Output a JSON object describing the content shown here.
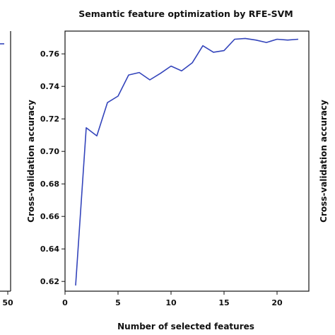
{
  "chart_data": [
    {
      "type": "line",
      "title": "Semantic feature optimization by RFE-SVM",
      "xlabel": "Number of selected features",
      "ylabel": "Cross-validation accuracy",
      "xlim": [
        0,
        23
      ],
      "ylim": [
        0.614,
        0.774
      ],
      "xticks": [
        0,
        5,
        10,
        15,
        20
      ],
      "yticks": [
        0.62,
        0.64,
        0.66,
        0.68,
        0.7,
        0.72,
        0.74,
        0.76
      ],
      "x_tick_labels": [
        "0",
        "5",
        "10",
        "15",
        "20"
      ],
      "y_tick_labels": [
        "0.62",
        "0.64",
        "0.66",
        "0.68",
        "0.70",
        "0.72",
        "0.74",
        "0.76"
      ],
      "grid": false,
      "series": [
        {
          "color": "#3344bb",
          "x": [
            1,
            2,
            3,
            4,
            5,
            6,
            7,
            8,
            9,
            10,
            11,
            12,
            13,
            14,
            15,
            16,
            17,
            18,
            19,
            20,
            21,
            22
          ],
          "y": [
            0.6175,
            0.7145,
            0.7095,
            0.73,
            0.734,
            0.747,
            0.7485,
            0.744,
            0.748,
            0.7525,
            0.7495,
            0.7545,
            0.765,
            0.761,
            0.762,
            0.769,
            0.7695,
            0.7685,
            0.767,
            0.769,
            0.7685,
            0.769
          ]
        }
      ]
    },
    {
      "type": "line",
      "partial": "left",
      "x_tick_labels": [
        "50"
      ]
    },
    {
      "type": "line",
      "partial": "right",
      "ylabel": "Cross-validation accuracy"
    }
  ]
}
